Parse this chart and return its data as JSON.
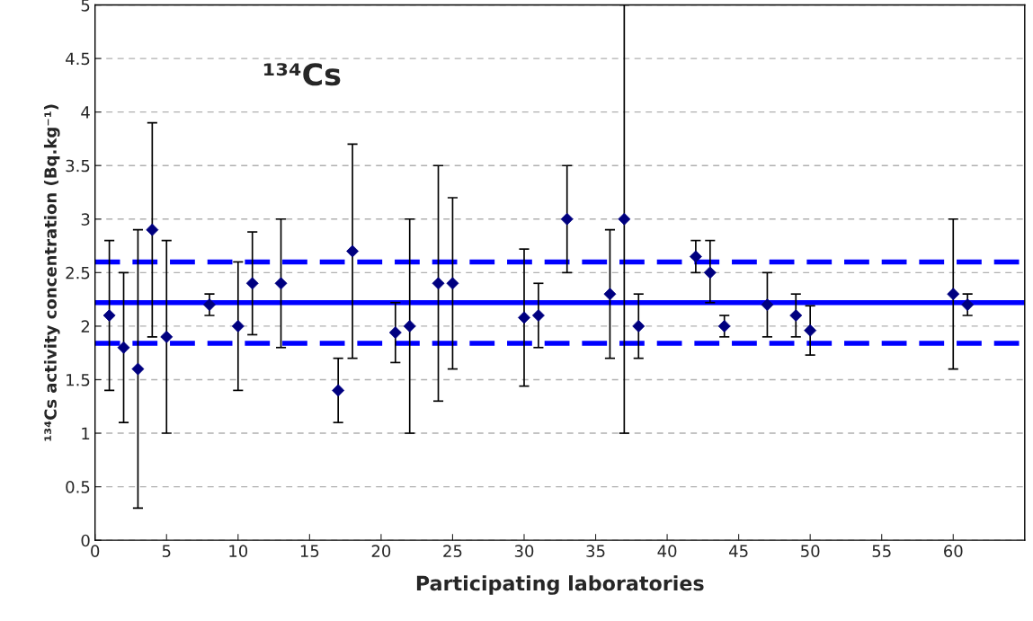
{
  "chart_data": {
    "type": "scatter",
    "xlabel": "Participating laboratories",
    "ylabel": "¹³⁴Cs activity concentration (Bq.kg⁻¹)",
    "annotations": [
      "¹³⁴Cs"
    ],
    "x": [
      1,
      2,
      3,
      4,
      5,
      8,
      10,
      11,
      13,
      17,
      18,
      21,
      22,
      24,
      25,
      30,
      31,
      33,
      36,
      37,
      38,
      42,
      43,
      44,
      47,
      49,
      50,
      60,
      61
    ],
    "series": [
      {
        "color": "#000080",
        "values": [
          2.1,
          1.8,
          1.6,
          2.9,
          1.9,
          2.2,
          2.0,
          2.4,
          2.4,
          1.4,
          2.7,
          1.94,
          2.0,
          2.4,
          2.4,
          2.08,
          2.1,
          3.0,
          2.3,
          3.0,
          2.0,
          2.65,
          2.5,
          2.0,
          2.2,
          2.1,
          1.96,
          2.3,
          2.2
        ],
        "errors": [
          [
            1.4,
            2.8
          ],
          [
            1.1,
            2.5
          ],
          [
            0.3,
            2.9
          ],
          [
            1.9,
            3.9
          ],
          [
            1.0,
            2.8
          ],
          [
            2.1,
            2.3
          ],
          [
            1.4,
            2.6
          ],
          [
            1.92,
            2.88
          ],
          [
            1.8,
            3.0
          ],
          [
            1.1,
            1.7
          ],
          [
            1.7,
            3.7
          ],
          [
            1.66,
            2.22
          ],
          [
            1.0,
            3.0
          ],
          [
            1.3,
            3.5
          ],
          [
            1.6,
            3.2
          ],
          [
            1.44,
            2.72
          ],
          [
            1.8,
            2.4
          ],
          [
            2.5,
            3.5
          ],
          [
            1.7,
            2.9
          ],
          [
            1.0,
            5.0
          ],
          [
            1.7,
            2.3
          ],
          [
            2.5,
            2.8
          ],
          [
            2.22,
            2.8
          ],
          [
            1.9,
            2.1
          ],
          [
            1.9,
            2.5
          ],
          [
            1.9,
            2.3
          ],
          [
            1.73,
            2.19
          ],
          [
            1.6,
            3.0
          ],
          [
            2.1,
            2.3
          ]
        ]
      }
    ],
    "ref_lines": [
      {
        "axis": "y",
        "value": 2.22,
        "color": "#0000ff",
        "line_style": "solid"
      },
      {
        "axis": "y",
        "value": 2.6,
        "color": "#0000ff",
        "line_style": "dashed"
      },
      {
        "axis": "y",
        "value": 1.84,
        "color": "#0000ff",
        "line_style": "dashed"
      }
    ],
    "marker": "diamond",
    "xlim": [
      0,
      65
    ],
    "xticks": [
      0,
      5,
      10,
      15,
      20,
      25,
      30,
      35,
      40,
      45,
      50,
      55,
      60
    ],
    "ylim": [
      0,
      5
    ],
    "yticks": [
      0,
      0.5,
      1,
      1.5,
      2,
      2.5,
      3,
      3.5,
      4,
      4.5,
      5
    ],
    "grid": "y",
    "legend": false
  }
}
